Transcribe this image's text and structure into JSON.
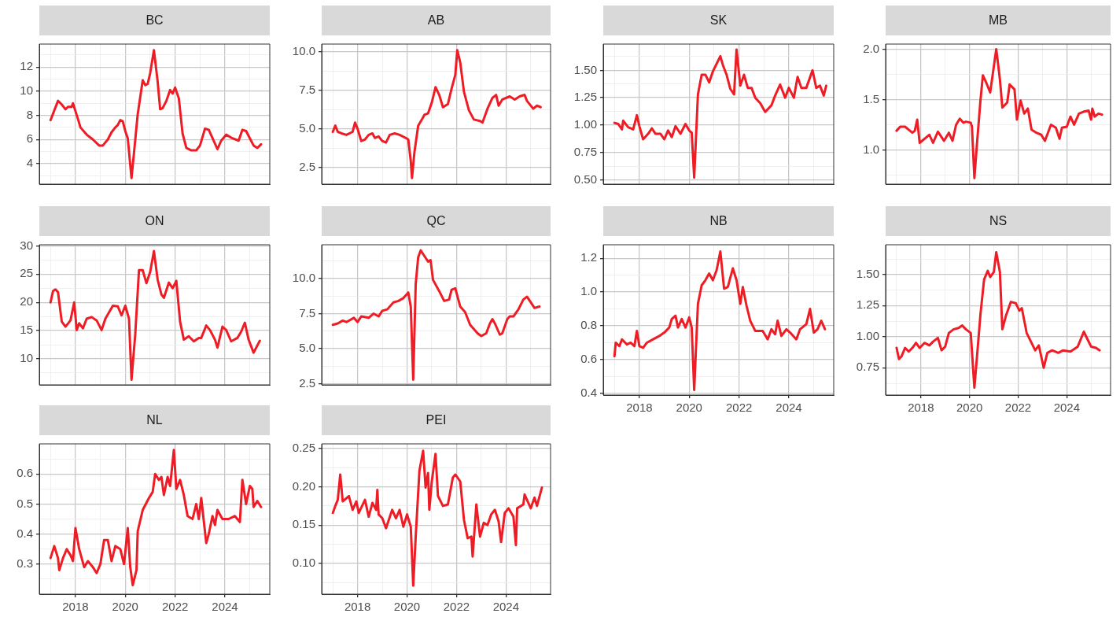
{
  "chart_data": [
    {
      "type": "line",
      "title": "BC",
      "color": "#ee1c25",
      "grid": true,
      "tick_labels": "y",
      "xlim": [
        2016.55,
        2025.8
      ],
      "xticks": [
        {
          "value": 2017,
          "label": null
        },
        2018,
        {
          "value": 2019,
          "label": null
        },
        2020,
        {
          "value": 2021,
          "label": null
        },
        2022,
        {
          "value": 2023,
          "label": null
        },
        2024,
        {
          "value": 2025,
          "label": null
        }
      ],
      "ylim": [
        2.3,
        13.9
      ],
      "yticks": [
        {
          "value": 3,
          "label": null
        },
        4,
        {
          "value": 5,
          "label": null
        },
        6,
        {
          "value": 7,
          "label": null
        },
        8,
        {
          "value": 9,
          "label": null
        },
        10,
        {
          "value": 11,
          "label": null
        },
        12,
        {
          "value": 13,
          "label": null
        }
      ],
      "x": [
        2017.0,
        2017.15,
        2017.3,
        2017.45,
        2017.6,
        2017.7,
        2017.85,
        2017.9,
        2018.1,
        2018.2,
        2018.45,
        2018.7,
        2018.95,
        2019.1,
        2019.3,
        2019.45,
        2019.6,
        2019.7,
        2019.8,
        2019.9,
        2020.0,
        2020.1,
        2020.25,
        2020.35,
        2020.5,
        2020.65,
        2020.7,
        2020.8,
        2020.9,
        2021.0,
        2021.15,
        2021.3,
        2021.4,
        2021.5,
        2021.65,
        2021.8,
        2021.9,
        2022.0,
        2022.15,
        2022.3,
        2022.45,
        2022.65,
        2022.85,
        2023.0,
        2023.2,
        2023.35,
        2023.55,
        2023.7,
        2023.85,
        2024.05,
        2024.3,
        2024.55,
        2024.7,
        2024.85,
        2025.0,
        2025.15,
        2025.3,
        2025.45
      ],
      "values": [
        7.6,
        8.4,
        9.2,
        8.9,
        8.5,
        8.7,
        8.7,
        9.0,
        7.7,
        7.0,
        6.4,
        6.0,
        5.5,
        5.5,
        6.0,
        6.6,
        7.0,
        7.2,
        7.6,
        7.5,
        6.7,
        6.1,
        2.8,
        4.9,
        8.1,
        10.2,
        10.9,
        10.5,
        10.6,
        11.5,
        13.4,
        10.8,
        8.5,
        8.6,
        9.2,
        10.1,
        9.8,
        10.3,
        9.4,
        6.5,
        5.3,
        5.1,
        5.1,
        5.5,
        6.9,
        6.8,
        5.9,
        5.2,
        5.9,
        6.4,
        6.1,
        5.9,
        6.8,
        6.7,
        6.1,
        5.5,
        5.3,
        5.6
      ]
    },
    {
      "type": "line",
      "title": "AB",
      "color": "#ee1c25",
      "grid": true,
      "tick_labels": "y",
      "xlim": [
        2016.55,
        2025.8
      ],
      "xticks": [
        {
          "value": 2017,
          "label": null
        },
        2018,
        {
          "value": 2019,
          "label": null
        },
        2020,
        {
          "value": 2021,
          "label": null
        },
        2022,
        {
          "value": 2023,
          "label": null
        },
        2024,
        {
          "value": 2025,
          "label": null
        }
      ],
      "ylim": [
        1.4,
        10.5
      ],
      "yticks": [
        {
          "value": 2.5,
          "label": "2.5"
        },
        {
          "value": 3.75,
          "label": null
        },
        {
          "value": 5,
          "label": "5.0"
        },
        {
          "value": 6.25,
          "label": null
        },
        {
          "value": 7.5,
          "label": "7.5"
        },
        {
          "value": 8.75,
          "label": null
        },
        {
          "value": 10,
          "label": "10.0"
        }
      ],
      "x": [
        2017.0,
        2017.1,
        2017.2,
        2017.35,
        2017.55,
        2017.8,
        2017.9,
        2018.0,
        2018.15,
        2018.3,
        2018.45,
        2018.6,
        2018.7,
        2018.85,
        2019.0,
        2019.15,
        2019.3,
        2019.5,
        2019.7,
        2019.95,
        2020.05,
        2020.15,
        2020.2,
        2020.3,
        2020.45,
        2020.6,
        2020.7,
        2020.85,
        2021.0,
        2021.15,
        2021.3,
        2021.45,
        2021.65,
        2021.8,
        2021.95,
        2022.03,
        2022.15,
        2022.3,
        2022.5,
        2022.7,
        2022.95,
        2023.05,
        2023.25,
        2023.45,
        2023.6,
        2023.7,
        2023.85,
        2024.15,
        2024.35,
        2024.55,
        2024.75,
        2024.85,
        2025.1,
        2025.25,
        2025.4
      ],
      "values": [
        4.8,
        5.2,
        4.8,
        4.7,
        4.6,
        4.8,
        5.4,
        5.0,
        4.2,
        4.3,
        4.6,
        4.7,
        4.4,
        4.5,
        4.2,
        4.1,
        4.6,
        4.7,
        4.6,
        4.4,
        4.3,
        2.9,
        1.8,
        3.5,
        5.2,
        5.6,
        5.9,
        6.0,
        6.7,
        7.7,
        7.2,
        6.4,
        6.6,
        7.6,
        8.5,
        10.1,
        9.3,
        7.4,
        6.2,
        5.6,
        5.5,
        5.4,
        6.3,
        7.0,
        7.2,
        6.5,
        6.9,
        7.1,
        6.9,
        7.1,
        7.2,
        6.8,
        6.3,
        6.5,
        6.4
      ]
    },
    {
      "type": "line",
      "title": "SK",
      "color": "#ee1c25",
      "grid": true,
      "tick_labels": "y",
      "xlim": [
        2016.55,
        2025.8
      ],
      "xticks": [
        {
          "value": 2017,
          "label": null
        },
        2018,
        {
          "value": 2019,
          "label": null
        },
        2020,
        {
          "value": 2021,
          "label": null
        },
        2022,
        {
          "value": 2023,
          "label": null
        },
        2024,
        {
          "value": 2025,
          "label": null
        }
      ],
      "ylim": [
        0.46,
        1.74
      ],
      "yticks": [
        {
          "value": 0.5,
          "label": "0.50"
        },
        {
          "value": 0.625,
          "label": null
        },
        {
          "value": 0.75,
          "label": "0.75"
        },
        {
          "value": 0.875,
          "label": null
        },
        {
          "value": 1,
          "label": "1.00"
        },
        {
          "value": 1.125,
          "label": null
        },
        {
          "value": 1.25,
          "label": "1.25"
        },
        {
          "value": 1.375,
          "label": null
        },
        {
          "value": 1.5,
          "label": "1.50"
        },
        {
          "value": 1.625,
          "label": null
        }
      ],
      "x": [
        2017.0,
        2017.15,
        2017.3,
        2017.35,
        2017.55,
        2017.75,
        2017.9,
        2018.0,
        2018.15,
        2018.35,
        2018.5,
        2018.65,
        2018.85,
        2019.0,
        2019.15,
        2019.3,
        2019.45,
        2019.65,
        2019.85,
        2020.0,
        2020.1,
        2020.2,
        2020.35,
        2020.5,
        2020.65,
        2020.8,
        2020.95,
        2021.25,
        2021.35,
        2021.5,
        2021.65,
        2021.8,
        2021.9,
        2022.05,
        2022.2,
        2022.35,
        2022.5,
        2022.65,
        2022.85,
        2023.05,
        2023.3,
        2023.45,
        2023.65,
        2023.85,
        2024.0,
        2024.2,
        2024.35,
        2024.5,
        2024.7,
        2024.95,
        2025.1,
        2025.25,
        2025.4,
        2025.5
      ],
      "values": [
        1.02,
        1.01,
        0.96,
        1.04,
        0.98,
        0.96,
        1.09,
        0.99,
        0.87,
        0.92,
        0.97,
        0.92,
        0.92,
        0.87,
        0.95,
        0.89,
        0.99,
        0.92,
        1.01,
        0.95,
        0.93,
        0.52,
        1.28,
        1.46,
        1.46,
        1.39,
        1.49,
        1.63,
        1.55,
        1.46,
        1.33,
        1.28,
        1.69,
        1.36,
        1.46,
        1.34,
        1.34,
        1.25,
        1.2,
        1.12,
        1.18,
        1.27,
        1.37,
        1.25,
        1.34,
        1.25,
        1.44,
        1.34,
        1.34,
        1.5,
        1.34,
        1.36,
        1.27,
        1.36
      ]
    },
    {
      "type": "line",
      "title": "MB",
      "color": "#ee1c25",
      "grid": true,
      "tick_labels": "y",
      "xlim": [
        2016.55,
        2025.8
      ],
      "xticks": [
        {
          "value": 2017,
          "label": null
        },
        2018,
        {
          "value": 2019,
          "label": null
        },
        2020,
        {
          "value": 2021,
          "label": null
        },
        2022,
        {
          "value": 2023,
          "label": null
        },
        2024,
        {
          "value": 2025,
          "label": null
        }
      ],
      "ylim": [
        0.66,
        2.05
      ],
      "yticks": [
        {
          "value": 0.75,
          "label": null
        },
        {
          "value": 1,
          "label": "1.0"
        },
        {
          "value": 1.25,
          "label": null
        },
        {
          "value": 1.5,
          "label": "1.5"
        },
        {
          "value": 1.75,
          "label": null
        },
        {
          "value": 2,
          "label": "2.0"
        }
      ],
      "x": [
        2017.0,
        2017.15,
        2017.35,
        2017.5,
        2017.65,
        2017.75,
        2017.85,
        2017.95,
        2018.15,
        2018.35,
        2018.5,
        2018.7,
        2018.95,
        2019.15,
        2019.3,
        2019.45,
        2019.6,
        2019.75,
        2019.85,
        2020.05,
        2020.1,
        2020.2,
        2020.3,
        2020.45,
        2020.55,
        2020.7,
        2020.85,
        2021.1,
        2021.25,
        2021.35,
        2021.55,
        2021.65,
        2021.85,
        2021.95,
        2022.1,
        2022.25,
        2022.4,
        2022.55,
        2022.75,
        2022.95,
        2023.1,
        2023.35,
        2023.55,
        2023.7,
        2023.8,
        2024.0,
        2024.15,
        2024.3,
        2024.5,
        2024.7,
        2024.9,
        2025.0,
        2025.05,
        2025.15,
        2025.3,
        2025.45
      ],
      "values": [
        1.19,
        1.23,
        1.23,
        1.2,
        1.17,
        1.19,
        1.3,
        1.07,
        1.11,
        1.15,
        1.07,
        1.18,
        1.09,
        1.17,
        1.09,
        1.25,
        1.31,
        1.27,
        1.28,
        1.27,
        1.23,
        0.72,
        1.04,
        1.49,
        1.74,
        1.66,
        1.57,
        2.0,
        1.7,
        1.42,
        1.47,
        1.65,
        1.6,
        1.3,
        1.49,
        1.36,
        1.41,
        1.2,
        1.17,
        1.15,
        1.09,
        1.25,
        1.22,
        1.11,
        1.22,
        1.23,
        1.33,
        1.25,
        1.36,
        1.38,
        1.39,
        1.3,
        1.41,
        1.33,
        1.36,
        1.35
      ]
    },
    {
      "type": "line",
      "title": "ON",
      "color": "#ee1c25",
      "grid": true,
      "tick_labels": "y",
      "xlim": [
        2016.55,
        2025.8
      ],
      "xticks": [
        {
          "value": 2017,
          "label": null
        },
        2018,
        {
          "value": 2019,
          "label": null
        },
        2020,
        {
          "value": 2021,
          "label": null
        },
        2022,
        {
          "value": 2023,
          "label": null
        },
        2024,
        {
          "value": 2025,
          "label": null
        }
      ],
      "ylim": [
        5.4,
        30.2
      ],
      "yticks": [
        {
          "value": 7.5,
          "label": null
        },
        10,
        {
          "value": 12.5,
          "label": null
        },
        15,
        {
          "value": 17.5,
          "label": null
        },
        20,
        {
          "value": 22.5,
          "label": null
        },
        25,
        {
          "value": 27.5,
          "label": null
        },
        30
      ],
      "x": [
        2017.0,
        2017.1,
        2017.2,
        2017.3,
        2017.45,
        2017.6,
        2017.8,
        2017.95,
        2018.05,
        2018.15,
        2018.3,
        2018.45,
        2018.65,
        2018.85,
        2019.05,
        2019.2,
        2019.5,
        2019.7,
        2019.85,
        2020.0,
        2020.15,
        2020.25,
        2020.4,
        2020.55,
        2020.7,
        2020.85,
        2021.0,
        2021.15,
        2021.3,
        2021.45,
        2021.55,
        2021.75,
        2021.9,
        2022.05,
        2022.2,
        2022.35,
        2022.55,
        2022.75,
        2022.95,
        2023.05,
        2023.25,
        2023.4,
        2023.6,
        2023.7,
        2023.9,
        2024.05,
        2024.25,
        2024.5,
        2024.65,
        2024.8,
        2024.95,
        2025.15,
        2025.4
      ],
      "values": [
        20.0,
        22.0,
        22.3,
        21.8,
        16.6,
        15.7,
        16.8,
        20.0,
        15.1,
        16.3,
        15.4,
        17.1,
        17.4,
        16.8,
        15.1,
        17.1,
        19.4,
        19.3,
        17.7,
        19.4,
        17.1,
        6.3,
        14.3,
        25.7,
        25.7,
        23.4,
        25.4,
        29.1,
        24.0,
        21.4,
        20.8,
        23.5,
        22.5,
        23.8,
        16.6,
        13.4,
        14.0,
        13.1,
        13.7,
        13.7,
        15.9,
        15.1,
        13.4,
        12.0,
        15.7,
        15.1,
        13.1,
        13.7,
        14.8,
        16.4,
        13.4,
        11.1,
        13.2
      ]
    },
    {
      "type": "line",
      "title": "QC",
      "color": "#ee1c25",
      "grid": true,
      "tick_labels": "y",
      "xlim": [
        2016.55,
        2025.8
      ],
      "xticks": [
        {
          "value": 2017,
          "label": null
        },
        2018,
        {
          "value": 2019,
          "label": null
        },
        2020,
        {
          "value": 2021,
          "label": null
        },
        2022,
        {
          "value": 2023,
          "label": null
        },
        2024,
        {
          "value": 2025,
          "label": null
        }
      ],
      "ylim": [
        2.43,
        12.4
      ],
      "yticks": [
        {
          "value": 2.5,
          "label": "2.5"
        },
        {
          "value": 3.75,
          "label": null
        },
        {
          "value": 5,
          "label": "5.0"
        },
        {
          "value": 6.25,
          "label": null
        },
        {
          "value": 7.5,
          "label": "7.5"
        },
        {
          "value": 8.75,
          "label": null
        },
        {
          "value": 10,
          "label": "10.0"
        },
        {
          "value": 11.25,
          "label": null
        }
      ],
      "x": [
        2017.0,
        2017.2,
        2017.4,
        2017.55,
        2017.85,
        2018.0,
        2018.15,
        2018.45,
        2018.65,
        2018.85,
        2019.0,
        2019.2,
        2019.45,
        2019.65,
        2019.85,
        2020.05,
        2020.15,
        2020.25,
        2020.35,
        2020.45,
        2020.55,
        2020.7,
        2020.85,
        2020.95,
        2021.05,
        2021.3,
        2021.5,
        2021.7,
        2021.8,
        2021.95,
        2022.15,
        2022.35,
        2022.55,
        2022.85,
        2023.0,
        2023.2,
        2023.35,
        2023.45,
        2023.55,
        2023.75,
        2023.85,
        2024.05,
        2024.15,
        2024.3,
        2024.5,
        2024.7,
        2024.85,
        2025.0,
        2025.15,
        2025.35
      ],
      "values": [
        6.7,
        6.8,
        7.0,
        6.9,
        7.2,
        6.9,
        7.3,
        7.2,
        7.5,
        7.3,
        7.7,
        7.8,
        8.3,
        8.4,
        8.6,
        9.0,
        8.0,
        2.8,
        9.6,
        11.5,
        12.0,
        11.6,
        11.2,
        11.3,
        9.9,
        9.1,
        8.4,
        8.5,
        9.2,
        9.3,
        8.0,
        7.6,
        6.7,
        6.1,
        5.9,
        6.1,
        6.8,
        7.1,
        6.8,
        6.0,
        6.1,
        7.1,
        7.3,
        7.3,
        7.8,
        8.5,
        8.7,
        8.3,
        7.9,
        8.0
      ]
    },
    {
      "type": "line",
      "title": "NB",
      "color": "#ee1c25",
      "grid": true,
      "xlim": [
        2016.55,
        2025.8
      ],
      "xticks": [
        {
          "value": 2017,
          "label": null
        },
        2018,
        {
          "value": 2019,
          "label": null
        },
        2020,
        {
          "value": 2021,
          "label": null
        },
        2022,
        {
          "value": 2023,
          "label": null
        },
        2024,
        {
          "value": 2025,
          "label": null
        }
      ],
      "ylim": [
        0.39,
        1.28
      ],
      "yticks": [
        {
          "value": 0.4,
          "label": "0.4"
        },
        {
          "value": 0.5,
          "label": null
        },
        {
          "value": 0.6,
          "label": "0.6"
        },
        {
          "value": 0.7,
          "label": null
        },
        {
          "value": 0.8,
          "label": "0.8"
        },
        {
          "value": 0.9,
          "label": null
        },
        {
          "value": 1,
          "label": "1.0"
        },
        {
          "value": 1.1,
          "label": null
        },
        {
          "value": 1.2,
          "label": "1.2"
        }
      ],
      "x": [
        2017.0,
        2017.05,
        2017.2,
        2017.3,
        2017.5,
        2017.65,
        2017.8,
        2017.9,
        2018.0,
        2018.15,
        2018.3,
        2018.55,
        2018.8,
        2019.0,
        2019.2,
        2019.3,
        2019.45,
        2019.55,
        2019.7,
        2019.85,
        2020.0,
        2020.1,
        2020.2,
        2020.35,
        2020.5,
        2020.65,
        2020.8,
        2020.95,
        2021.1,
        2021.25,
        2021.4,
        2021.55,
        2021.75,
        2021.9,
        2022.05,
        2022.15,
        2022.3,
        2022.45,
        2022.65,
        2022.95,
        2023.15,
        2023.3,
        2023.45,
        2023.55,
        2023.7,
        2023.9,
        2024.05,
        2024.3,
        2024.45,
        2024.7,
        2024.85,
        2025.0,
        2025.15,
        2025.3,
        2025.45
      ],
      "values": [
        0.62,
        0.7,
        0.68,
        0.72,
        0.69,
        0.7,
        0.68,
        0.77,
        0.68,
        0.67,
        0.7,
        0.72,
        0.74,
        0.76,
        0.79,
        0.84,
        0.86,
        0.79,
        0.84,
        0.79,
        0.85,
        0.79,
        0.42,
        0.93,
        1.04,
        1.07,
        1.11,
        1.07,
        1.13,
        1.24,
        1.02,
        1.03,
        1.14,
        1.07,
        0.93,
        1.03,
        0.92,
        0.83,
        0.77,
        0.77,
        0.72,
        0.78,
        0.75,
        0.83,
        0.74,
        0.78,
        0.76,
        0.72,
        0.78,
        0.81,
        0.9,
        0.76,
        0.78,
        0.83,
        0.78
      ]
    },
    {
      "type": "line",
      "title": "NS",
      "color": "#ee1c25",
      "grid": true,
      "xlim": [
        2016.55,
        2025.8
      ],
      "xticks": [
        {
          "value": 2017,
          "label": null
        },
        2018,
        {
          "value": 2019,
          "label": null
        },
        2020,
        {
          "value": 2021,
          "label": null
        },
        2022,
        {
          "value": 2023,
          "label": null
        },
        2024,
        {
          "value": 2025,
          "label": null
        }
      ],
      "ylim": [
        0.53,
        1.74
      ],
      "yticks": [
        {
          "value": 0.625,
          "label": null
        },
        {
          "value": 0.75,
          "label": "0.75"
        },
        {
          "value": 0.875,
          "label": null
        },
        {
          "value": 1,
          "label": "1.00"
        },
        {
          "value": 1.125,
          "label": null
        },
        {
          "value": 1.25,
          "label": "1.25"
        },
        {
          "value": 1.375,
          "label": null
        },
        {
          "value": 1.5,
          "label": "1.50"
        },
        {
          "value": 1.625,
          "label": null
        }
      ],
      "x": [
        2017.0,
        2017.1,
        2017.2,
        2017.35,
        2017.5,
        2017.65,
        2017.8,
        2017.95,
        2018.15,
        2018.35,
        2018.5,
        2018.7,
        2018.85,
        2019.0,
        2019.15,
        2019.35,
        2019.55,
        2019.7,
        2019.85,
        2020.05,
        2020.2,
        2020.3,
        2020.45,
        2020.6,
        2020.75,
        2020.85,
        2021.0,
        2021.1,
        2021.25,
        2021.35,
        2021.5,
        2021.7,
        2021.9,
        2022.05,
        2022.15,
        2022.35,
        2022.55,
        2022.7,
        2022.85,
        2023.05,
        2023.2,
        2023.4,
        2023.65,
        2023.85,
        2024.15,
        2024.45,
        2024.7,
        2024.85,
        2025.0,
        2025.2,
        2025.35
      ],
      "values": [
        0.91,
        0.82,
        0.84,
        0.91,
        0.88,
        0.91,
        0.95,
        0.91,
        0.95,
        0.93,
        0.96,
        0.99,
        0.89,
        0.92,
        1.03,
        1.06,
        1.07,
        1.09,
        1.06,
        1.03,
        0.59,
        0.82,
        1.18,
        1.46,
        1.53,
        1.48,
        1.52,
        1.68,
        1.52,
        1.06,
        1.17,
        1.28,
        1.27,
        1.21,
        1.23,
        1.03,
        0.95,
        0.89,
        0.93,
        0.75,
        0.87,
        0.89,
        0.87,
        0.89,
        0.88,
        0.92,
        1.04,
        0.98,
        0.92,
        0.91,
        0.89
      ]
    },
    {
      "type": "line",
      "title": "NL",
      "color": "#ee1c25",
      "grid": true,
      "xlim": [
        2016.55,
        2025.8
      ],
      "xticks": [
        {
          "value": 2017,
          "label": null
        },
        2018,
        {
          "value": 2019,
          "label": null
        },
        2020,
        {
          "value": 2021,
          "label": null
        },
        2022,
        {
          "value": 2023,
          "label": null
        },
        2024,
        {
          "value": 2025,
          "label": null
        }
      ],
      "ylim": [
        0.2,
        0.7
      ],
      "yticks": [
        {
          "value": 0.25,
          "label": null
        },
        {
          "value": 0.3,
          "label": "0.3"
        },
        {
          "value": 0.35,
          "label": null
        },
        {
          "value": 0.4,
          "label": "0.4"
        },
        {
          "value": 0.45,
          "label": null
        },
        {
          "value": 0.5,
          "label": "0.5"
        },
        {
          "value": 0.55,
          "label": null
        },
        {
          "value": 0.6,
          "label": "0.6"
        },
        {
          "value": 0.65,
          "label": null
        }
      ],
      "x": [
        2017.0,
        2017.15,
        2017.3,
        2017.35,
        2017.5,
        2017.65,
        2017.8,
        2017.9,
        2018.0,
        2018.15,
        2018.35,
        2018.5,
        2018.7,
        2018.85,
        2019.0,
        2019.15,
        2019.3,
        2019.45,
        2019.6,
        2019.8,
        2019.95,
        2020.1,
        2020.2,
        2020.3,
        2020.45,
        2020.5,
        2020.7,
        2020.95,
        2021.1,
        2021.2,
        2021.35,
        2021.45,
        2021.55,
        2021.7,
        2021.8,
        2021.95,
        2022.05,
        2022.2,
        2022.35,
        2022.5,
        2022.7,
        2022.85,
        2022.95,
        2023.05,
        2023.25,
        2023.35,
        2023.5,
        2023.6,
        2023.7,
        2023.9,
        2024.15,
        2024.4,
        2024.6,
        2024.7,
        2024.85,
        2025.0,
        2025.1,
        2025.15,
        2025.3,
        2025.45
      ],
      "values": [
        0.32,
        0.36,
        0.32,
        0.28,
        0.32,
        0.35,
        0.33,
        0.31,
        0.42,
        0.35,
        0.29,
        0.31,
        0.29,
        0.27,
        0.3,
        0.38,
        0.38,
        0.31,
        0.36,
        0.35,
        0.3,
        0.42,
        0.29,
        0.23,
        0.28,
        0.41,
        0.48,
        0.52,
        0.54,
        0.6,
        0.58,
        0.59,
        0.53,
        0.59,
        0.56,
        0.68,
        0.55,
        0.58,
        0.53,
        0.46,
        0.45,
        0.5,
        0.45,
        0.52,
        0.37,
        0.4,
        0.46,
        0.43,
        0.48,
        0.45,
        0.45,
        0.46,
        0.44,
        0.58,
        0.5,
        0.56,
        0.55,
        0.49,
        0.51,
        0.49
      ]
    },
    {
      "type": "line",
      "title": "PEI",
      "color": "#ee1c25",
      "grid": true,
      "xlim": [
        2016.55,
        2025.8
      ],
      "xticks": [
        {
          "value": 2017,
          "label": null
        },
        2018,
        {
          "value": 2019,
          "label": null
        },
        2020,
        {
          "value": 2021,
          "label": null
        },
        2022,
        {
          "value": 2023,
          "label": null
        },
        2024,
        {
          "value": 2025,
          "label": null
        }
      ],
      "ylim": [
        0.06,
        0.256
      ],
      "yticks": [
        {
          "value": 0.075,
          "label": null
        },
        {
          "value": 0.1,
          "label": "0.10"
        },
        {
          "value": 0.125,
          "label": null
        },
        {
          "value": 0.15,
          "label": "0.15"
        },
        {
          "value": 0.175,
          "label": null
        },
        {
          "value": 0.2,
          "label": "0.20"
        },
        {
          "value": 0.225,
          "label": null
        },
        {
          "value": 0.25,
          "label": "0.25"
        }
      ],
      "x": [
        2017.0,
        2017.1,
        2017.2,
        2017.3,
        2017.4,
        2017.65,
        2017.8,
        2017.95,
        2018.05,
        2018.3,
        2018.45,
        2018.6,
        2018.75,
        2018.8,
        2018.85,
        2019.0,
        2019.15,
        2019.4,
        2019.55,
        2019.7,
        2019.85,
        2020.0,
        2020.15,
        2020.25,
        2020.35,
        2020.5,
        2020.65,
        2020.75,
        2020.85,
        2020.9,
        2021.0,
        2021.15,
        2021.25,
        2021.45,
        2021.65,
        2021.85,
        2021.95,
        2022.15,
        2022.3,
        2022.45,
        2022.6,
        2022.65,
        2022.8,
        2022.95,
        2023.1,
        2023.25,
        2023.4,
        2023.55,
        2023.7,
        2023.8,
        2023.95,
        2024.1,
        2024.3,
        2024.4,
        2024.45,
        2024.7,
        2024.75,
        2025.0,
        2025.15,
        2025.25,
        2025.45
      ],
      "values": [
        0.166,
        0.175,
        0.183,
        0.216,
        0.181,
        0.188,
        0.17,
        0.181,
        0.166,
        0.183,
        0.161,
        0.179,
        0.17,
        0.196,
        0.164,
        0.159,
        0.146,
        0.17,
        0.159,
        0.17,
        0.148,
        0.164,
        0.148,
        0.071,
        0.135,
        0.221,
        0.247,
        0.199,
        0.218,
        0.17,
        0.207,
        0.243,
        0.188,
        0.175,
        0.177,
        0.212,
        0.216,
        0.207,
        0.157,
        0.133,
        0.135,
        0.109,
        0.177,
        0.135,
        0.153,
        0.15,
        0.164,
        0.17,
        0.155,
        0.128,
        0.166,
        0.172,
        0.161,
        0.124,
        0.172,
        0.177,
        0.19,
        0.172,
        0.186,
        0.175,
        0.199
      ]
    }
  ]
}
